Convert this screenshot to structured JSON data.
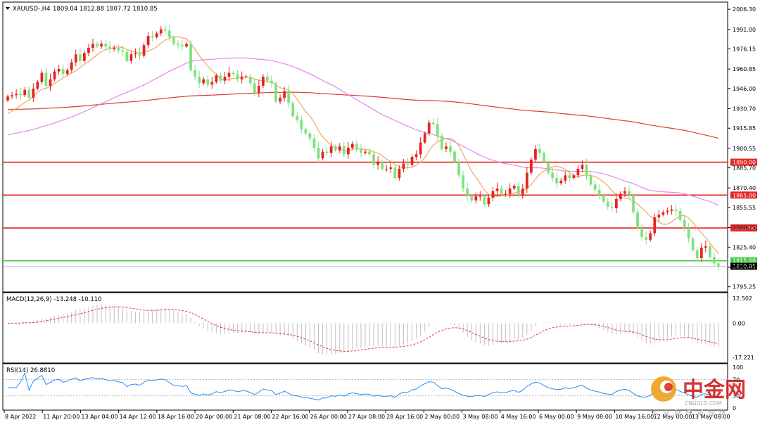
{
  "chart_data": [
    {
      "type": "candlestick",
      "symbol": "XAUUSD-,H4",
      "ohlc_readout": [
        "1809.04",
        "1812.88",
        "1807.72",
        "1810.85"
      ],
      "current_price": 1810.85,
      "current_price_label": "1810.85",
      "y_range": [
        1794,
        2008
      ],
      "y_ticks": [
        {
          "value": 2006.3,
          "label": "2006.30"
        },
        {
          "value": 1991.0,
          "label": "1991.00"
        },
        {
          "value": 1976.15,
          "label": "1976.15"
        },
        {
          "value": 1960.85,
          "label": "1960.85"
        },
        {
          "value": 1946.0,
          "label": "1946.00"
        },
        {
          "value": 1930.7,
          "label": "1930.70"
        },
        {
          "value": 1915.85,
          "label": "1915.85"
        },
        {
          "value": 1900.55,
          "label": "1900.55"
        },
        {
          "value": 1885.7,
          "label": "1885.70"
        },
        {
          "value": 1870.4,
          "label": "1870.40"
        },
        {
          "value": 1855.55,
          "label": "1855.55"
        },
        {
          "value": 1840.25,
          "label": "1840.25"
        },
        {
          "value": 1825.4,
          "label": "1825.40"
        },
        {
          "value": 1810.1,
          "label": "1810.10"
        },
        {
          "value": 1795.25,
          "label": "1795.25"
        }
      ],
      "levels": [
        {
          "value": 1890.0,
          "label": "1890.00",
          "color": "#e8231e"
        },
        {
          "value": 1865.0,
          "label": "1865.00",
          "color": "#e8231e"
        },
        {
          "value": 1840.0,
          "label": "1840.00",
          "color": "#e8231e"
        },
        {
          "value": 1815.0,
          "label": "1815.00",
          "color": "#3fcb3f"
        }
      ],
      "bull_color": "#e8231e",
      "bear_color": "#7fe27f",
      "ma_colors": {
        "fast": "#f4a460",
        "mid": "#ee82ee",
        "slow": "#dc3c32"
      },
      "close": [
        1940,
        1941,
        1942,
        1941,
        1945,
        1939,
        1946,
        1951,
        1958,
        1948,
        1953,
        1959,
        1961,
        1957,
        1960,
        1966,
        1972,
        1967,
        1973,
        1977,
        1980,
        1978,
        1980,
        1978,
        1976,
        1977,
        1975,
        1974,
        1967,
        1972,
        1973,
        1971,
        1979,
        1986,
        1985,
        1988,
        1991,
        1990,
        1985,
        1980,
        1979,
        1978,
        1980,
        1960,
        1955,
        1950,
        1953,
        1949,
        1951,
        1956,
        1952,
        1955,
        1958,
        1957,
        1953,
        1955,
        1955,
        1950,
        1943,
        1948,
        1955,
        1952,
        1950,
        1936,
        1939,
        1944,
        1935,
        1925,
        1922,
        1915,
        1912,
        1908,
        1901,
        1893,
        1898,
        1897,
        1902,
        1899,
        1902,
        1896,
        1901,
        1904,
        1900,
        1897,
        1898,
        1896,
        1888,
        1890,
        1885,
        1885,
        1886,
        1878,
        1885,
        1889,
        1888,
        1894,
        1896,
        1905,
        1912,
        1920,
        1919,
        1910,
        1900,
        1902,
        1898,
        1890,
        1880,
        1870,
        1864,
        1861,
        1864,
        1864,
        1858,
        1863,
        1868,
        1870,
        1866,
        1866,
        1870,
        1872,
        1865,
        1870,
        1882,
        1892,
        1900,
        1897,
        1890,
        1882,
        1878,
        1874,
        1876,
        1880,
        1878,
        1880,
        1885,
        1888,
        1880,
        1873,
        1869,
        1865,
        1860,
        1856,
        1855,
        1862,
        1866,
        1868,
        1865,
        1852,
        1840,
        1833,
        1831,
        1836,
        1848,
        1850,
        1852,
        1853,
        1854,
        1853,
        1846,
        1840,
        1832,
        1823,
        1817,
        1825,
        1826,
        1818,
        1813,
        1810.85
      ],
      "macd_label": "MACD(12,26,9) -13.248 -10.110",
      "macd_range": [
        -19,
        14
      ],
      "macd_ticks": [
        {
          "value": 12.502,
          "label": "12.502"
        },
        {
          "value": 0.0,
          "label": "0.00"
        },
        {
          "value": -17.221,
          "label": "-17.221"
        }
      ],
      "macd_hist_color": "#c0c0c0",
      "macd_signal_color": "#dc3c32",
      "rsi_label": "RSI(14) 26.8810",
      "rsi_range": [
        0,
        100
      ],
      "rsi_ticks": [
        {
          "value": 100,
          "label": "100"
        },
        {
          "value": 70,
          "label": "70"
        },
        {
          "value": 30,
          "label": "30"
        },
        {
          "value": 0,
          "label": "0"
        }
      ],
      "rsi_color": "#1e90ff",
      "x_labels": [
        "8 Apr 2022",
        "11 Apr 20:00",
        "13 Apr 04:00",
        "14 Apr 12:00",
        "18 Apr 16:00",
        "20 Apr 00:00",
        "21 Apr 08:00",
        "22 Apr 16:00",
        "26 Apr 00:00",
        "27 Apr 08:00",
        "28 Apr 16:00",
        "2 May 00:00",
        "3 May 08:00",
        "4 May 16:00",
        "6 May 00:00",
        "9 May 08:00",
        "10 May 16:00",
        "12 May 00:00",
        "13 May 08:00"
      ]
    }
  ],
  "watermark": {
    "brand": "中金网",
    "domain": "CNGOLD.COM",
    "slogan": "专业财经新媒体"
  }
}
